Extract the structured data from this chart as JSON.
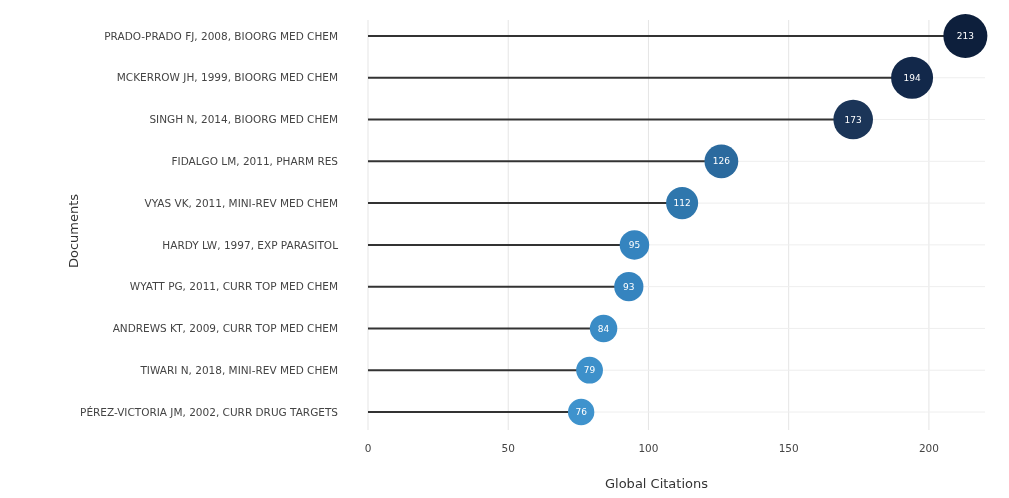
{
  "chart_data": {
    "type": "lollipop",
    "orientation": "horizontal",
    "xlabel": "Global Citations",
    "ylabel": "Documents",
    "categories": [
      "PRADO-PRADO FJ, 2008, BIOORG MED CHEM",
      "MCKERROW JH, 1999, BIOORG MED CHEM",
      "SINGH N, 2014, BIOORG MED CHEM",
      "FIDALGO LM, 2011, PHARM RES",
      "VYAS VK, 2011, MINI-REV MED CHEM",
      "HARDY LW, 1997, EXP PARASITOL",
      "WYATT PG, 2011, CURR TOP MED CHEM",
      "ANDREWS KT, 2009, CURR TOP MED CHEM",
      "TIWARI N, 2018, MINI-REV MED CHEM",
      "PÉREZ-VICTORIA JM, 2002, CURR DRUG TARGETS"
    ],
    "values": [
      213,
      194,
      173,
      126,
      112,
      95,
      93,
      84,
      79,
      76
    ],
    "sizes": [
      1,
      0.91,
      0.81,
      0.59,
      0.53,
      0.45,
      0.44,
      0.39,
      0.37,
      0.36
    ],
    "colors": [
      "#0d1f3c",
      "#12284a",
      "#1b3558",
      "#2b6a9e",
      "#2f77ad",
      "#3584bf",
      "#3584bf",
      "#3a8cc6",
      "#3d90ca",
      "#3f93cd"
    ],
    "xlim": [
      0,
      220
    ],
    "xticks": [
      0,
      50,
      100,
      150,
      200
    ],
    "grid": true,
    "data_labels": true
  }
}
